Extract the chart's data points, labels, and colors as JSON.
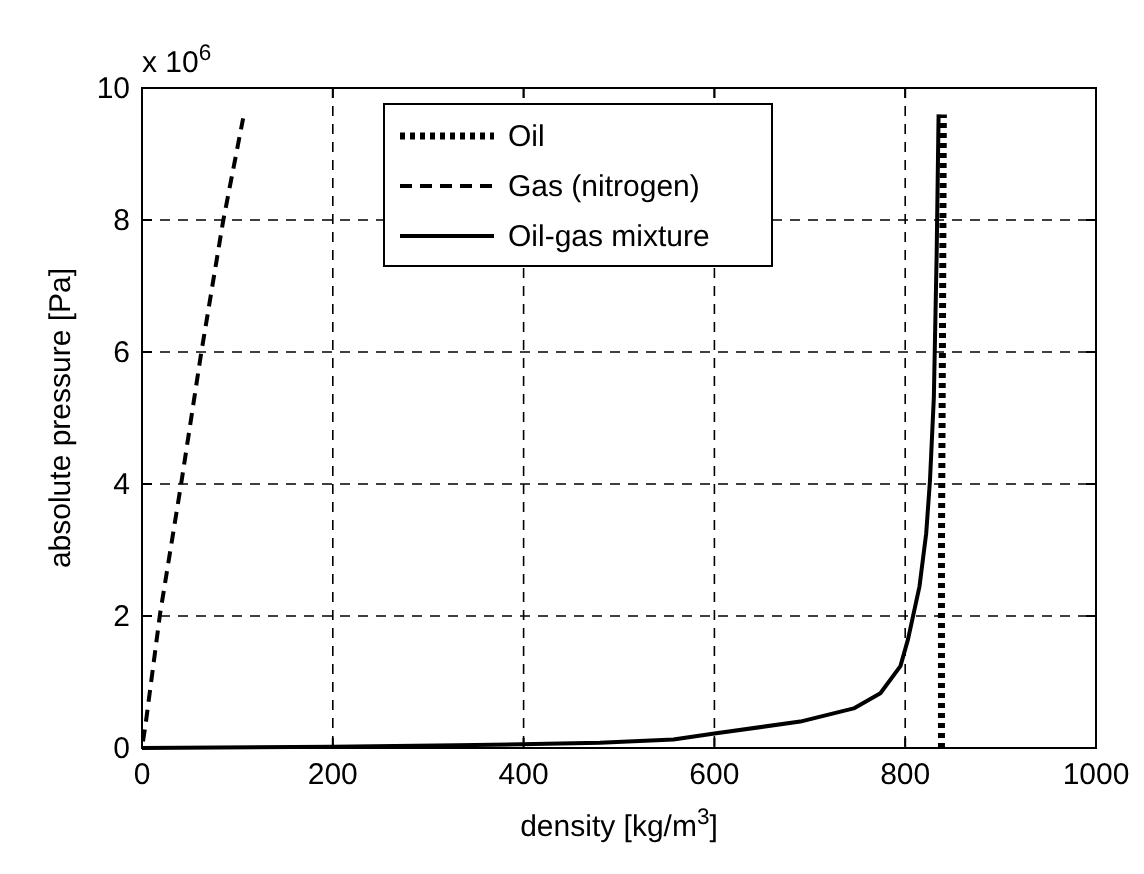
{
  "chart_data": {
    "type": "line",
    "xlabel": "density [kg/m$^{3}$]",
    "ylabel": "absolute pressure [Pa]",
    "annotations": [
      "x 10$^{6}$"
    ],
    "xlim": [
      0,
      1000
    ],
    "ylim": [
      0,
      10
    ],
    "xticks": [
      0,
      200,
      400,
      600,
      800,
      1000
    ],
    "yticks": [
      0,
      2,
      4,
      6,
      8,
      10
    ],
    "grid": true,
    "legend": "top",
    "series": [
      {
        "name": "Oil",
        "color": "#000000",
        "line_style": "dotted",
        "x": [
          838,
          838,
          839,
          840
        ],
        "values": [
          0,
          3,
          6,
          9.6
        ]
      },
      {
        "name": "Gas (nitrogen)",
        "color": "#000000",
        "line_style": "dashed",
        "x": [
          1,
          3.5,
          19,
          41,
          62,
          85,
          106
        ],
        "values": [
          0.1,
          0.33,
          2.04,
          4,
          5.98,
          7.98,
          9.54
        ]
      },
      {
        "name": "Oil-gas mixture",
        "color": "#000000",
        "line_style": "solid",
        "x": [
          0,
          200,
          330,
          480,
          557,
          600,
          690,
          746,
          774,
          795,
          803,
          815,
          822,
          826,
          830,
          833,
          835
        ],
        "values": [
          0,
          0.02,
          0.04,
          0.08,
          0.13,
          0.22,
          0.4,
          0.6,
          0.83,
          1.24,
          1.65,
          2.45,
          3.25,
          4.06,
          5.3,
          7.5,
          9.6
        ]
      }
    ]
  }
}
